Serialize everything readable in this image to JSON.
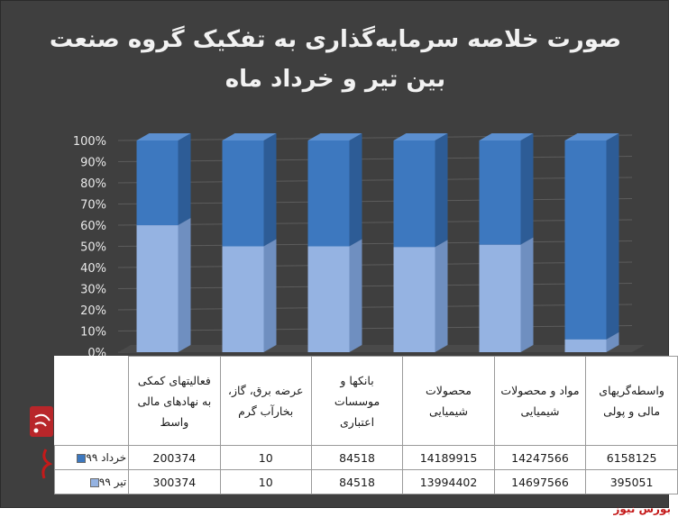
{
  "chart_data": {
    "type": "bar",
    "stacked": "percent",
    "title_line1": "صورت خلاصه سرمایه‌گذاری به تفکیک گروه صنعت",
    "title_line2": "بین تیر و خرداد ماه",
    "categories": [
      "فعالیتهای کمکی به نهادهای مالی واسط",
      "عرضه برق، گاز، بخارآب گرم",
      "بانکها و موسسات اعتباری",
      "محصولات شیمیایی",
      "مواد و محصولات شیمیایی",
      "واسطه‌گریهای مالی و پولی"
    ],
    "series": [
      {
        "name": "تیر ۹۹",
        "display_values": [
          "300374",
          "10",
          "84518",
          "13994402",
          "14697566",
          "395051"
        ],
        "values": [
          300374,
          10,
          84518,
          13994402,
          14697566,
          395051
        ]
      },
      {
        "name": "خرداد ۹۹",
        "display_values": [
          "200374",
          "10",
          "84518",
          "14189915",
          "14247566",
          "6158125"
        ],
        "values": [
          200374,
          10,
          84518,
          14189915,
          14247566,
          6158125
        ]
      }
    ],
    "y_ticks": [
      "0%",
      "10%",
      "20%",
      "30%",
      "40%",
      "50%",
      "60%",
      "70%",
      "80%",
      "90%",
      "100%"
    ],
    "ylim": [
      0,
      100
    ],
    "grid": true,
    "legend": "table-left",
    "colors": {
      "tir": "#95b3e2",
      "khordad": "#3d78bf",
      "background": "#3f3f3f"
    }
  },
  "watermark": "بورس نیوز"
}
